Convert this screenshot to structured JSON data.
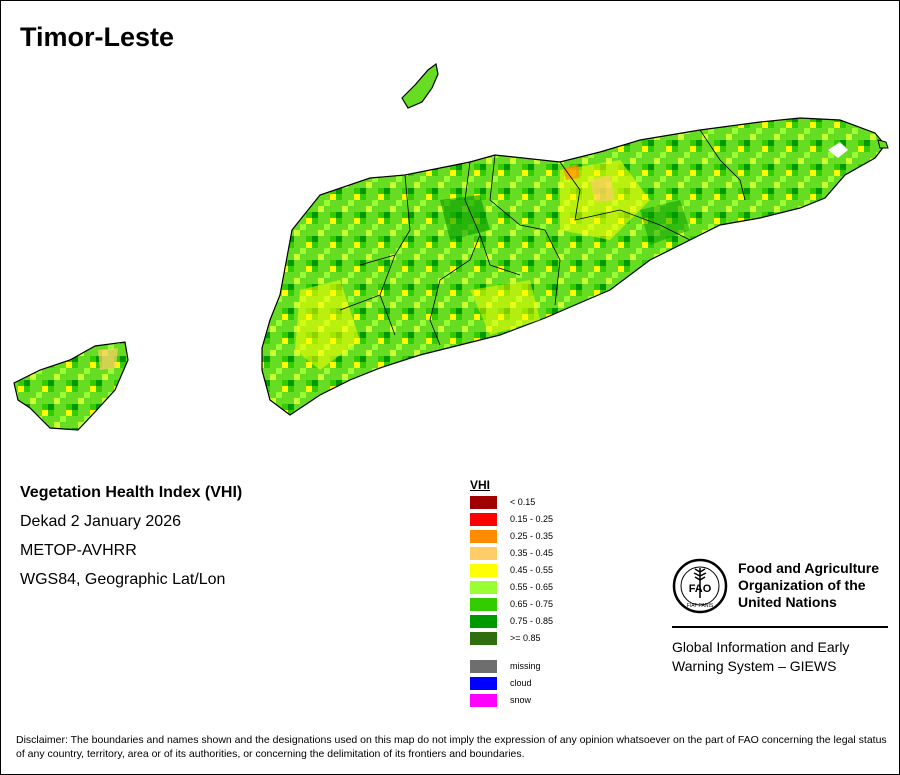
{
  "title": "Timor-Leste",
  "info": {
    "index_name": "Vegetation Health Index (VHI)",
    "period": "Dekad 2 January 2026",
    "sensor": "METOP-AVHRR",
    "projection": "WGS84, Geographic Lat/Lon"
  },
  "legend": {
    "title": "VHI",
    "classes": [
      {
        "label": "< 0.15",
        "color": "#a00000"
      },
      {
        "label": "0.15 - 0.25",
        "color": "#ff0000"
      },
      {
        "label": "0.25 - 0.35",
        "color": "#ff8c00"
      },
      {
        "label": "0.35 - 0.45",
        "color": "#ffcc66"
      },
      {
        "label": "0.45 - 0.55",
        "color": "#ffff00"
      },
      {
        "label": "0.55 - 0.65",
        "color": "#99ff33"
      },
      {
        "label": "0.65 - 0.75",
        "color": "#33cc00"
      },
      {
        "label": "0.75 - 0.85",
        "color": "#009900"
      },
      {
        "label": ">= 0.85",
        "color": "#2e6e0e"
      }
    ],
    "other": [
      {
        "label": "missing",
        "color": "#6e6e6e"
      },
      {
        "label": "cloud",
        "color": "#0000ff"
      },
      {
        "label": "snow",
        "color": "#ff00ff"
      }
    ]
  },
  "organization": {
    "name_line1": "Food and Agriculture",
    "name_line2": "Organization of the",
    "name_line3": "United Nations",
    "emblem_text": "FAO",
    "emblem_motto": "FIAT PANIS",
    "system_line1": "Global Information and Early",
    "system_line2": "Warning System – GIEWS"
  },
  "disclaimer": "Disclaimer: The boundaries and names shown and the designations used on this map do not imply the expression of any opinion whatsoever on the part of FAO concerning the legal status of any country, territory, area or of its authorities, or concerning the delimitation of its frontiers and boundaries."
}
